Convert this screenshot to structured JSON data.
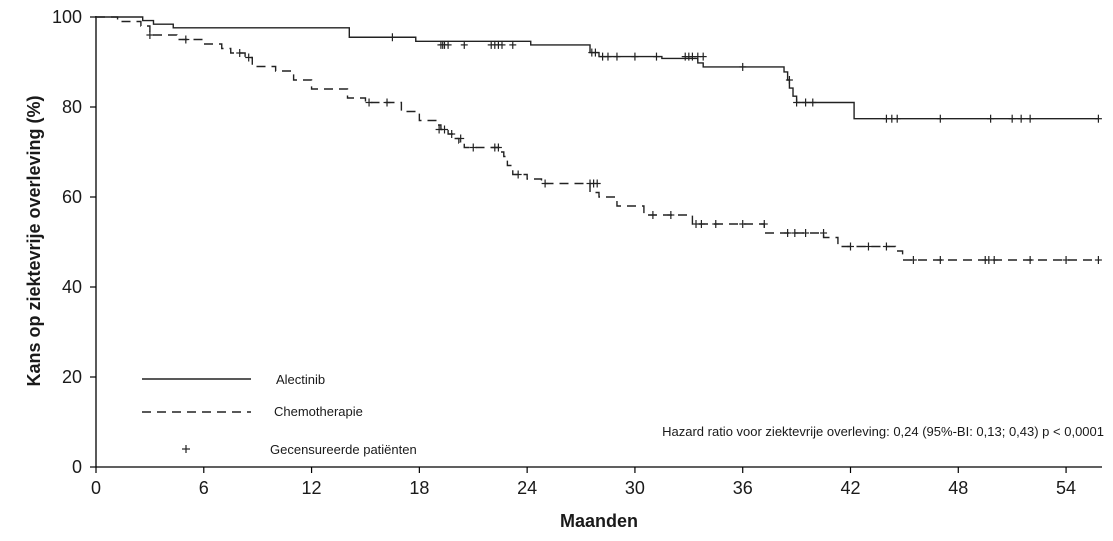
{
  "chart_data": {
    "type": "line",
    "title": "",
    "xlabel": "Maanden",
    "ylabel": "Kans op ziektevrije overleving (%)",
    "xlim": [
      0,
      56
    ],
    "ylim": [
      0,
      100
    ],
    "xticks": [
      0,
      6,
      12,
      18,
      24,
      30,
      36,
      42,
      48,
      54
    ],
    "yticks": [
      0,
      20,
      40,
      60,
      80,
      100
    ],
    "grid": false,
    "legend_position": "bottom-left",
    "legend": [
      {
        "label": "Alectinib",
        "style": "solid"
      },
      {
        "label": "Chemotherapie",
        "style": "dashed"
      },
      {
        "label": "Gecensureerde patiënten",
        "style": "marker"
      }
    ],
    "annotation": "Hazard ratio voor ziektevrije overleving: 0,24 (95%-BI: 0,13; 0,43) p < 0,0001",
    "series": [
      {
        "name": "Alectinib",
        "style": "solid",
        "steps": [
          [
            0,
            100
          ],
          [
            2.6,
            99.2
          ],
          [
            3.2,
            98.4
          ],
          [
            4.3,
            97.6
          ],
          [
            14.1,
            95.5
          ],
          [
            17.8,
            94.6
          ],
          [
            24.2,
            93.8
          ],
          [
            27.5,
            92.1
          ],
          [
            28.0,
            91.2
          ],
          [
            31.5,
            90.8
          ],
          [
            33.5,
            89.8
          ],
          [
            33.8,
            88.9
          ],
          [
            38.3,
            87.8
          ],
          [
            38.5,
            86.0
          ],
          [
            38.6,
            84.2
          ],
          [
            38.8,
            82.4
          ],
          [
            39.0,
            81.0
          ],
          [
            42.2,
            77.4
          ],
          [
            55.8,
            77.4
          ]
        ],
        "censored": [
          [
            16.5,
            95.5
          ],
          [
            19.2,
            93.8
          ],
          [
            19.3,
            93.8
          ],
          [
            19.4,
            93.8
          ],
          [
            19.6,
            93.8
          ],
          [
            20.5,
            93.8
          ],
          [
            22.0,
            93.8
          ],
          [
            22.2,
            93.8
          ],
          [
            22.4,
            93.8
          ],
          [
            22.6,
            93.8
          ],
          [
            23.2,
            93.8
          ],
          [
            27.6,
            92.1
          ],
          [
            27.8,
            92.1
          ],
          [
            28.2,
            91.2
          ],
          [
            28.5,
            91.2
          ],
          [
            29.0,
            91.2
          ],
          [
            30.0,
            91.2
          ],
          [
            31.2,
            91.2
          ],
          [
            32.8,
            91.2
          ],
          [
            33.0,
            91.2
          ],
          [
            33.2,
            91.2
          ],
          [
            33.5,
            91.2
          ],
          [
            33.8,
            91.2
          ],
          [
            36.0,
            88.9
          ],
          [
            38.6,
            86.0
          ],
          [
            39.0,
            81.0
          ],
          [
            39.5,
            81.0
          ],
          [
            39.9,
            81.0
          ],
          [
            44.0,
            77.4
          ],
          [
            44.3,
            77.4
          ],
          [
            44.6,
            77.4
          ],
          [
            47.0,
            77.4
          ],
          [
            49.8,
            77.4
          ],
          [
            51.0,
            77.4
          ],
          [
            51.5,
            77.4
          ],
          [
            52.0,
            77.4
          ],
          [
            55.8,
            77.4
          ]
        ]
      },
      {
        "name": "Chemotherapie",
        "style": "dashed",
        "steps": [
          [
            0,
            100
          ],
          [
            1.2,
            99.0
          ],
          [
            2.5,
            98.0
          ],
          [
            3.0,
            96.0
          ],
          [
            4.5,
            95.0
          ],
          [
            6.0,
            94.0
          ],
          [
            7.0,
            93.0
          ],
          [
            7.5,
            92.0
          ],
          [
            8.3,
            91.0
          ],
          [
            8.7,
            89.0
          ],
          [
            10.0,
            88.0
          ],
          [
            11.0,
            86.0
          ],
          [
            12.0,
            84.0
          ],
          [
            14.0,
            82.0
          ],
          [
            15.0,
            81.0
          ],
          [
            17.0,
            79.0
          ],
          [
            18.0,
            77.0
          ],
          [
            19.0,
            76.0
          ],
          [
            19.2,
            75.0
          ],
          [
            19.6,
            74.0
          ],
          [
            20.0,
            73.0
          ],
          [
            20.2,
            72.0
          ],
          [
            20.5,
            71.0
          ],
          [
            22.5,
            70.0
          ],
          [
            22.7,
            69.0
          ],
          [
            22.9,
            67.0
          ],
          [
            23.2,
            65.0
          ],
          [
            24.0,
            64.0
          ],
          [
            24.8,
            63.0
          ],
          [
            27.5,
            61.0
          ],
          [
            28.0,
            60.0
          ],
          [
            29.0,
            58.0
          ],
          [
            30.5,
            56.0
          ],
          [
            33.2,
            54.0
          ],
          [
            37.2,
            52.0
          ],
          [
            40.5,
            51.0
          ],
          [
            41.3,
            49.0
          ],
          [
            44.5,
            48.0
          ],
          [
            44.9,
            46.0
          ],
          [
            55.8,
            46.0
          ]
        ],
        "censored": [
          [
            3.0,
            96.0
          ],
          [
            5.0,
            95.0
          ],
          [
            8.0,
            92.0
          ],
          [
            8.5,
            91.0
          ],
          [
            15.2,
            81.0
          ],
          [
            16.2,
            81.0
          ],
          [
            19.1,
            75.0
          ],
          [
            19.4,
            75.0
          ],
          [
            19.8,
            74.0
          ],
          [
            20.3,
            73.0
          ],
          [
            21.0,
            71.0
          ],
          [
            22.2,
            71.0
          ],
          [
            22.4,
            71.0
          ],
          [
            23.5,
            65.0
          ],
          [
            25.0,
            63.0
          ],
          [
            27.5,
            63.0
          ],
          [
            27.7,
            63.0
          ],
          [
            27.9,
            63.0
          ],
          [
            31.0,
            56.0
          ],
          [
            32.0,
            56.0
          ],
          [
            33.4,
            54.0
          ],
          [
            33.7,
            54.0
          ],
          [
            34.5,
            54.0
          ],
          [
            36.0,
            54.0
          ],
          [
            37.2,
            54.0
          ],
          [
            38.5,
            52.0
          ],
          [
            38.9,
            52.0
          ],
          [
            39.5,
            52.0
          ],
          [
            40.5,
            52.0
          ],
          [
            42.0,
            49.0
          ],
          [
            43.0,
            49.0
          ],
          [
            44.0,
            49.0
          ],
          [
            45.5,
            46.0
          ],
          [
            47.0,
            46.0
          ],
          [
            49.5,
            46.0
          ],
          [
            49.7,
            46.0
          ],
          [
            50.0,
            46.0
          ],
          [
            52.0,
            46.0
          ],
          [
            54.0,
            46.0
          ],
          [
            55.8,
            46.0
          ]
        ]
      }
    ]
  }
}
